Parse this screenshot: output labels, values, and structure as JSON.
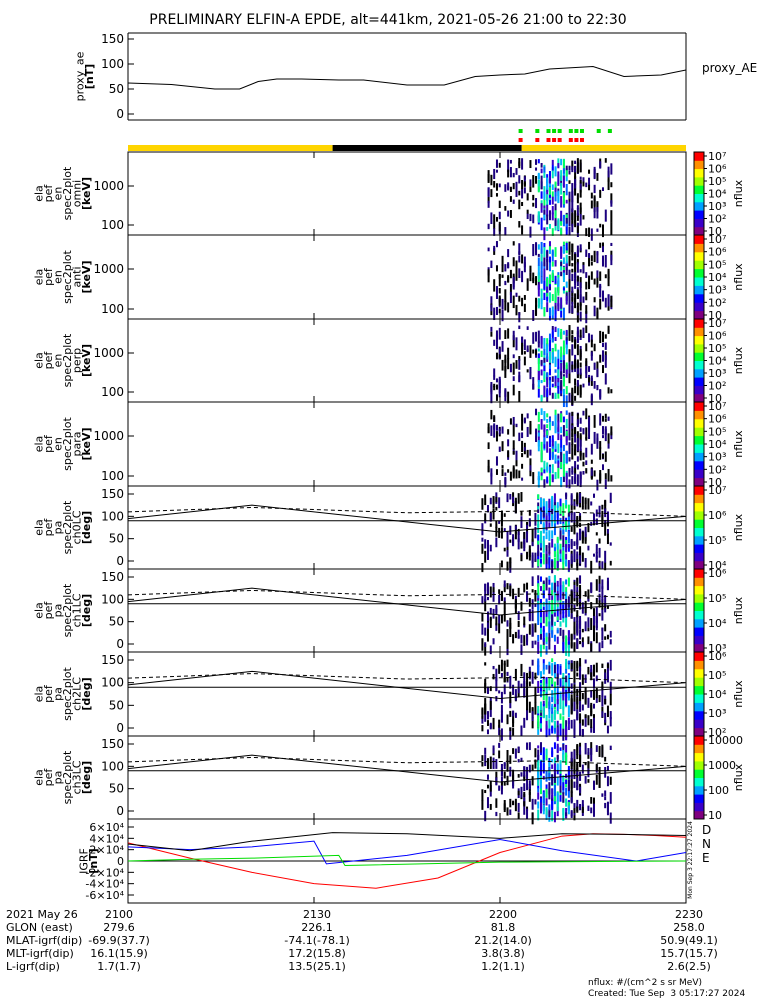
{
  "title": "PRELIMINARY ELFIN-A EPDE, alt=441km, 2021-05-26 21:00 to 22:30",
  "colors": {
    "flag_yellow": "#ffd500",
    "flag_black": "#000000",
    "green": "#00dd00",
    "red": "#ff0000",
    "blue": "#0000ff"
  },
  "chart_data": [
    {
      "id": "proxy_ae",
      "type": "line",
      "ylabel": [
        "proxy_ae",
        "[nT]"
      ],
      "legend": "proxy_AE",
      "ylim": [
        0,
        150
      ],
      "yticks": [
        "0",
        "50",
        "100",
        "150"
      ],
      "x": [
        0,
        7,
        14,
        18,
        21,
        24,
        28,
        34,
        38,
        45,
        51,
        56,
        60,
        64,
        68,
        75,
        80,
        86,
        90
      ],
      "y": [
        62,
        59,
        50,
        50,
        65,
        70,
        70,
        68,
        68,
        58,
        58,
        75,
        78,
        80,
        90,
        95,
        75,
        78,
        88
      ]
    },
    {
      "id": "flags",
      "type": "strip",
      "segments": [
        {
          "from": 0,
          "to": 33,
          "color": "flag_yellow"
        },
        {
          "from": 33,
          "to": 63.5,
          "color": "flag_black"
        },
        {
          "from": 63.5,
          "to": 90,
          "color": "flag_yellow"
        }
      ]
    },
    {
      "id": "en_omni",
      "type": "heatmap",
      "ylabel": [
        "ela",
        "pef",
        "en",
        "spec2plot",
        "omni",
        "[keV]"
      ],
      "yticks": [
        "100",
        "1000"
      ],
      "cbar_ticks": [
        "10",
        "10²",
        "10³",
        "10⁴",
        "10⁵",
        "10⁶",
        "10⁷"
      ],
      "cbar_label": "nflux"
    },
    {
      "id": "en_anti",
      "type": "heatmap",
      "ylabel": [
        "ela",
        "pef",
        "en",
        "spec2plot",
        "anti",
        "[keV]"
      ],
      "yticks": [
        "100",
        "1000"
      ],
      "cbar_ticks": [
        "10",
        "10²",
        "10³",
        "10⁴",
        "10⁵",
        "10⁶",
        "10⁷"
      ],
      "cbar_label": "nflux"
    },
    {
      "id": "en_perp",
      "type": "heatmap",
      "ylabel": [
        "ela",
        "pef",
        "en",
        "spec2plot",
        "perp",
        "[keV]"
      ],
      "yticks": [
        "100",
        "1000"
      ],
      "cbar_ticks": [
        "10",
        "10²",
        "10³",
        "10⁴",
        "10⁵",
        "10⁶",
        "10⁷"
      ],
      "cbar_label": "nflux"
    },
    {
      "id": "en_para",
      "type": "heatmap",
      "ylabel": [
        "ela",
        "pef",
        "en",
        "spec2plot",
        "para",
        "[keV]"
      ],
      "yticks": [
        "100",
        "1000"
      ],
      "cbar_ticks": [
        "10",
        "10²",
        "10³",
        "10⁴",
        "10⁵",
        "10⁶",
        "10⁷"
      ],
      "cbar_label": "nflux"
    },
    {
      "id": "pa_ch0",
      "type": "heatmap",
      "ylabel": [
        "ela",
        "pef",
        "pa",
        "spec2plot",
        "ch0LC",
        "[deg]"
      ],
      "yticks": [
        "0",
        "50",
        "100",
        "150"
      ],
      "cbar_ticks": [
        "10⁴",
        "10⁵",
        "10⁶",
        "10⁷"
      ],
      "cbar_label": "nflux"
    },
    {
      "id": "pa_ch1",
      "type": "heatmap",
      "ylabel": [
        "ela",
        "pef",
        "pa",
        "spec2plot",
        "ch1LC",
        "[deg]"
      ],
      "yticks": [
        "0",
        "50",
        "100",
        "150"
      ],
      "cbar_ticks": [
        "10³",
        "10⁴",
        "10⁵",
        "10⁶"
      ],
      "cbar_label": "nflux"
    },
    {
      "id": "pa_ch2",
      "type": "heatmap",
      "ylabel": [
        "ela",
        "pef",
        "pa",
        "spec2plot",
        "ch2LC",
        "[deg]"
      ],
      "yticks": [
        "0",
        "50",
        "100",
        "150"
      ],
      "cbar_ticks": [
        "10²",
        "10³",
        "10⁴",
        "10⁵",
        "10⁶"
      ],
      "cbar_label": "nflux"
    },
    {
      "id": "pa_ch3",
      "type": "heatmap",
      "ylabel": [
        "ela",
        "pef",
        "pa",
        "spec2plot",
        "ch3LC",
        "[deg]"
      ],
      "yticks": [
        "0",
        "50",
        "100",
        "150"
      ],
      "cbar_ticks": [
        "10",
        "100",
        "1000",
        "10000"
      ],
      "cbar_label": "nflux"
    },
    {
      "id": "igrf",
      "type": "line",
      "ylabel": [
        "IGRF",
        "[nT]"
      ],
      "ylim": [
        -60000,
        60000
      ],
      "yticks": [
        "-6×10⁴",
        "-4×10⁴",
        "-2×10⁴",
        "0",
        "2×10⁴",
        "4×10⁴",
        "6×10⁴"
      ],
      "legend": [
        "D",
        "N",
        "E"
      ],
      "series": [
        {
          "name": "D",
          "color": "red",
          "x": [
            0,
            10,
            20,
            30,
            40,
            50,
            60,
            70,
            75,
            80,
            85,
            90
          ],
          "y": [
            32000,
            5000,
            -20000,
            -40000,
            -48000,
            -30000,
            15000,
            44000,
            48000,
            47000,
            45000,
            42000
          ]
        },
        {
          "name": "N",
          "color": "blue",
          "x": [
            0,
            10,
            20,
            30,
            32,
            45,
            60,
            70,
            82,
            90
          ],
          "y": [
            25000,
            20000,
            25000,
            35000,
            -5000,
            10000,
            38000,
            18000,
            0,
            15000
          ]
        },
        {
          "name": "E",
          "color": "green",
          "x": [
            0,
            10,
            20,
            34,
            35,
            60,
            90
          ],
          "y": [
            0,
            3000,
            5000,
            10000,
            -8000,
            -2000,
            0
          ]
        },
        {
          "name": "black",
          "color": "black",
          "x": [
            0,
            10,
            20,
            33,
            45,
            60,
            70,
            80,
            90
          ],
          "y": [
            30000,
            18000,
            35000,
            50000,
            48000,
            40000,
            48000,
            47000,
            45000
          ]
        }
      ]
    }
  ],
  "time_axis": {
    "ticks": [
      "2100",
      "2130",
      "2200",
      "2230"
    ],
    "minutes": [
      0,
      30,
      60,
      90
    ]
  },
  "footer_rows": [
    {
      "label": "2021 May 26",
      "values": [
        "2100",
        "2130",
        "2200",
        "2230"
      ]
    },
    {
      "label": "GLON (east)",
      "values": [
        "279.6",
        "226.1",
        "81.8",
        "258.0"
      ]
    },
    {
      "label": "MLAT-igrf(dip)",
      "values": [
        "-69.9(37.7)",
        "-74.1(-78.1)",
        "21.2(14.0)",
        "50.9(49.1)"
      ]
    },
    {
      "label": "MLT-igrf(dip)",
      "values": [
        "16.1(15.9)",
        "17.2(15.8)",
        "3.8(3.8)",
        "15.7(15.7)"
      ]
    },
    {
      "label": "L-igrf(dip)",
      "values": [
        "1.7(1.7)",
        "13.5(25.1)",
        "1.2(1.1)",
        "2.6(2.5)"
      ]
    }
  ],
  "units_note": "nflux: #/(cm^2 s sr MeV)",
  "created": "Created: Tue Sep  3 05:17:27 2024",
  "side_stamp": "Mon Sep  3 22:17:27 2024"
}
